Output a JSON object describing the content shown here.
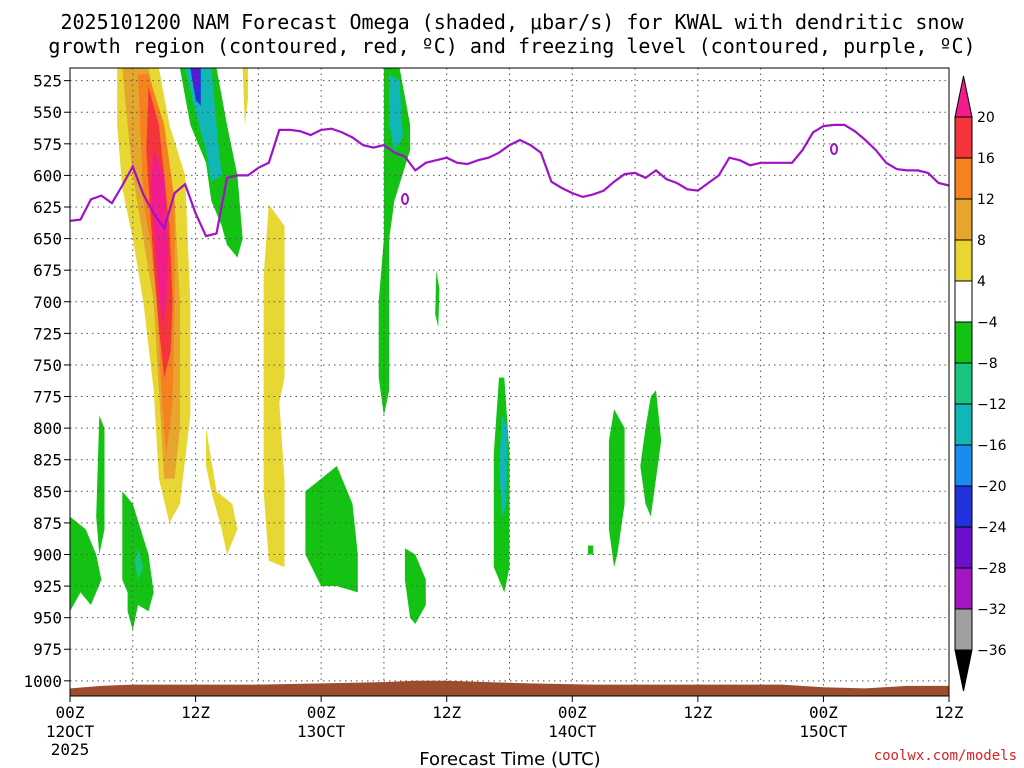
{
  "chart_data": {
    "type": "heatmap",
    "title_line1": "2025101200 NAM Forecast Omega (shaded, μbar/s) for KWAL with dendritic snow",
    "title_line2": "growth region (contoured, red, ºC) and freezing level (contoured, purple, ºC)",
    "xlabel": "Forecast Time (UTC)",
    "credit": "coolwx.com/models",
    "x_range_hours": [
      0,
      84
    ],
    "y_range_hpa": [
      515,
      1012
    ],
    "y_ticks": [
      525,
      550,
      575,
      600,
      625,
      650,
      675,
      700,
      725,
      750,
      775,
      800,
      825,
      850,
      875,
      900,
      925,
      950,
      975,
      1000
    ],
    "x_ticks": [
      {
        "h": 0,
        "l1": "00Z",
        "l2": "12OCT",
        "l3": "2025"
      },
      {
        "h": 12,
        "l1": "12Z",
        "l2": "",
        "l3": ""
      },
      {
        "h": 24,
        "l1": "00Z",
        "l2": "13OCT",
        "l3": ""
      },
      {
        "h": 36,
        "l1": "12Z",
        "l2": "",
        "l3": ""
      },
      {
        "h": 48,
        "l1": "00Z",
        "l2": "14OCT",
        "l3": ""
      },
      {
        "h": 60,
        "l1": "12Z",
        "l2": "",
        "l3": ""
      },
      {
        "h": 72,
        "l1": "00Z",
        "l2": "15OCT",
        "l3": ""
      },
      {
        "h": 84,
        "l1": "12Z",
        "l2": "",
        "l3": ""
      }
    ],
    "colorbar": {
      "labels": [
        "20",
        "16",
        "12",
        "8",
        "4",
        "−4",
        "−8",
        "−12",
        "−16",
        "−20",
        "−24",
        "−28",
        "−32",
        "−36"
      ],
      "colors_top_to_bottom": [
        "#f21c8c",
        "#f5343c",
        "#f5821e",
        "#e6a62e",
        "#e8d632",
        "#ffffff",
        "#13c213",
        "#18c682",
        "#12b6b6",
        "#1a8cf0",
        "#2233dd",
        "#6a10cc",
        "#a416c4",
        "#a0a0a0",
        "#000000"
      ]
    },
    "freezing_level_hpa": [
      [
        0,
        636
      ],
      [
        1,
        635
      ],
      [
        2,
        619
      ],
      [
        3,
        616
      ],
      [
        4,
        622
      ],
      [
        5,
        608
      ],
      [
        6,
        593
      ],
      [
        7,
        615
      ],
      [
        8,
        630
      ],
      [
        9,
        642
      ],
      [
        10,
        614
      ],
      [
        11,
        607
      ],
      [
        12,
        630
      ],
      [
        13,
        648
      ],
      [
        14,
        646
      ],
      [
        15,
        602
      ],
      [
        16,
        600
      ],
      [
        17,
        600
      ],
      [
        18,
        594
      ],
      [
        19,
        590
      ],
      [
        20,
        564
      ],
      [
        21,
        564
      ],
      [
        22,
        565
      ],
      [
        23,
        568
      ],
      [
        24,
        564
      ],
      [
        25,
        563
      ],
      [
        26,
        566
      ],
      [
        27,
        570
      ],
      [
        28,
        576
      ],
      [
        29,
        578
      ],
      [
        30,
        576
      ],
      [
        31,
        582
      ],
      [
        32,
        585
      ],
      [
        33,
        596
      ],
      [
        34,
        590
      ],
      [
        35,
        588
      ],
      [
        36,
        586
      ],
      [
        37,
        590
      ],
      [
        38,
        591
      ],
      [
        39,
        588
      ],
      [
        40,
        586
      ],
      [
        41,
        582
      ],
      [
        42,
        576
      ],
      [
        43,
        572
      ],
      [
        44,
        576
      ],
      [
        45,
        582
      ],
      [
        46,
        605
      ],
      [
        47,
        610
      ],
      [
        48,
        614
      ],
      [
        49,
        617
      ],
      [
        50,
        615
      ],
      [
        51,
        612
      ],
      [
        52,
        605
      ],
      [
        53,
        599
      ],
      [
        54,
        598
      ],
      [
        55,
        602
      ],
      [
        56,
        596
      ],
      [
        57,
        603
      ],
      [
        58,
        606
      ],
      [
        59,
        611
      ],
      [
        60,
        612
      ],
      [
        61,
        606
      ],
      [
        62,
        600
      ],
      [
        63,
        586
      ],
      [
        64,
        588
      ],
      [
        65,
        592
      ],
      [
        66,
        590
      ],
      [
        67,
        590
      ],
      [
        68,
        590
      ],
      [
        69,
        590
      ],
      [
        70,
        580
      ],
      [
        71,
        566
      ],
      [
        72,
        561
      ],
      [
        73,
        560
      ],
      [
        74,
        560
      ],
      [
        75,
        565
      ],
      [
        76,
        572
      ],
      [
        77,
        580
      ],
      [
        78,
        590
      ],
      [
        79,
        595
      ],
      [
        80,
        596
      ],
      [
        81,
        596
      ],
      [
        82,
        598
      ],
      [
        83,
        606
      ],
      [
        84,
        608
      ]
    ],
    "terrain_hpa": [
      [
        0,
        1006
      ],
      [
        3,
        1004
      ],
      [
        6,
        1003
      ],
      [
        12,
        1003
      ],
      [
        18,
        1003
      ],
      [
        24,
        1002
      ],
      [
        30,
        1001
      ],
      [
        33,
        1000
      ],
      [
        36,
        1000
      ],
      [
        40,
        1001
      ],
      [
        44,
        1002
      ],
      [
        50,
        1003
      ],
      [
        56,
        1003
      ],
      [
        62,
        1003
      ],
      [
        68,
        1003
      ],
      [
        72,
        1005
      ],
      [
        76,
        1006
      ],
      [
        80,
        1004
      ],
      [
        84,
        1004
      ]
    ],
    "omega_regions": [
      {
        "level": "6",
        "pts": [
          [
            4.5,
            515
          ],
          [
            8.5,
            515
          ],
          [
            9.5,
            560
          ],
          [
            11,
            600
          ],
          [
            11.5,
            700
          ],
          [
            11.5,
            790
          ],
          [
            10.5,
            860
          ],
          [
            9.5,
            875
          ],
          [
            8.5,
            840
          ],
          [
            8,
            770
          ],
          [
            7,
            700
          ],
          [
            6,
            650
          ],
          [
            5,
            610
          ],
          [
            4.5,
            560
          ]
        ]
      },
      {
        "level": "10",
        "pts": [
          [
            5,
            515
          ],
          [
            7.5,
            515
          ],
          [
            8.5,
            560
          ],
          [
            10,
            620
          ],
          [
            10.5,
            700
          ],
          [
            10.5,
            800
          ],
          [
            10,
            840
          ],
          [
            9,
            840
          ],
          [
            8.5,
            770
          ],
          [
            8,
            700
          ],
          [
            7,
            650
          ],
          [
            6,
            600
          ],
          [
            5.5,
            560
          ]
        ]
      },
      {
        "level": "14",
        "pts": [
          [
            6.5,
            520
          ],
          [
            7.5,
            520
          ],
          [
            9,
            560
          ],
          [
            10,
            620
          ],
          [
            10,
            700
          ],
          [
            9.8,
            780
          ],
          [
            9.2,
            820
          ],
          [
            8.8,
            780
          ],
          [
            8.3,
            700
          ],
          [
            7.8,
            660
          ],
          [
            7,
            620
          ],
          [
            6.8,
            580
          ]
        ]
      },
      {
        "level": "18",
        "pts": [
          [
            7.5,
            530
          ],
          [
            8.5,
            560
          ],
          [
            9.5,
            640
          ],
          [
            9.8,
            700
          ],
          [
            9.6,
            740
          ],
          [
            9,
            760
          ],
          [
            8.5,
            720
          ],
          [
            8,
            670
          ],
          [
            7.6,
            620
          ],
          [
            7.3,
            580
          ]
        ]
      },
      {
        "level": "22",
        "pts": [
          [
            8,
            580
          ],
          [
            9,
            600
          ],
          [
            9.4,
            660
          ],
          [
            9.2,
            700
          ],
          [
            8.8,
            720
          ],
          [
            8.4,
            680
          ],
          [
            8,
            640
          ],
          [
            7.7,
            610
          ]
        ]
      },
      {
        "level": "6",
        "pts": [
          [
            13,
            800
          ],
          [
            14,
            850
          ],
          [
            15.5,
            860
          ],
          [
            16,
            880
          ],
          [
            15,
            900
          ],
          [
            14.5,
            880
          ],
          [
            13.5,
            850
          ],
          [
            13,
            830
          ]
        ]
      },
      {
        "level": "6",
        "pts": [
          [
            19,
            623
          ],
          [
            20.5,
            640
          ],
          [
            20.5,
            760
          ],
          [
            20,
            780
          ],
          [
            20.5,
            840
          ],
          [
            20.5,
            910
          ],
          [
            19,
            905
          ],
          [
            18.5,
            850
          ],
          [
            18.5,
            780
          ],
          [
            18.5,
            680
          ]
        ]
      },
      {
        "level": "6",
        "pts": [
          [
            16.5,
            515
          ],
          [
            17,
            515
          ],
          [
            17,
            540
          ],
          [
            16.7,
            560
          ]
        ]
      },
      {
        "level": "-6",
        "pts": [
          [
            10.5,
            515
          ],
          [
            14,
            515
          ],
          [
            15,
            560
          ],
          [
            16,
            600
          ],
          [
            16.5,
            650
          ],
          [
            16,
            665
          ],
          [
            15,
            655
          ],
          [
            14.5,
            640
          ],
          [
            13.5,
            620
          ],
          [
            13,
            590
          ],
          [
            11.5,
            560
          ]
        ]
      },
      {
        "level": "-14",
        "pts": [
          [
            11,
            515
          ],
          [
            13.5,
            515
          ],
          [
            14,
            560
          ],
          [
            14.5,
            600
          ],
          [
            13.5,
            605
          ],
          [
            13,
            580
          ],
          [
            12,
            550
          ]
        ]
      },
      {
        "level": "-22",
        "pts": [
          [
            11.5,
            515
          ],
          [
            12.5,
            515
          ],
          [
            12.5,
            545
          ],
          [
            12,
            540
          ]
        ]
      },
      {
        "level": "-26",
        "pts": [
          [
            11.8,
            515
          ],
          [
            12.3,
            515
          ],
          [
            12.2,
            535
          ],
          [
            11.9,
            530
          ]
        ]
      },
      {
        "level": "-6",
        "pts": [
          [
            30,
            515
          ],
          [
            31.5,
            515
          ],
          [
            32.5,
            560
          ],
          [
            32.5,
            580
          ],
          [
            31,
            620
          ],
          [
            30.5,
            650
          ],
          [
            30.5,
            700
          ],
          [
            30.5,
            770
          ],
          [
            30,
            790
          ],
          [
            29.5,
            760
          ],
          [
            29.5,
            700
          ],
          [
            30,
            650
          ],
          [
            30,
            560
          ]
        ]
      },
      {
        "level": "-14",
        "pts": [
          [
            30.5,
            520
          ],
          [
            31.5,
            525
          ],
          [
            31.8,
            570
          ],
          [
            31,
            580
          ],
          [
            30.5,
            560
          ]
        ]
      },
      {
        "level": "-6",
        "pts": [
          [
            35,
            675
          ],
          [
            35.3,
            690
          ],
          [
            35.2,
            720
          ],
          [
            34.9,
            710
          ]
        ]
      },
      {
        "level": "-6",
        "pts": [
          [
            0,
            870
          ],
          [
            1.5,
            880
          ],
          [
            2.5,
            900
          ],
          [
            3,
            920
          ],
          [
            2,
            940
          ],
          [
            1,
            930
          ],
          [
            0,
            945
          ]
        ]
      },
      {
        "level": "-6",
        "pts": [
          [
            2.8,
            790
          ],
          [
            3.3,
            800
          ],
          [
            3.3,
            880
          ],
          [
            2.8,
            900
          ],
          [
            2.5,
            870
          ]
        ]
      },
      {
        "level": "-6",
        "pts": [
          [
            5,
            850
          ],
          [
            6,
            860
          ],
          [
            7.5,
            900
          ],
          [
            8,
            930
          ],
          [
            7.5,
            945
          ],
          [
            6.5,
            940
          ],
          [
            6,
            960
          ],
          [
            5.5,
            945
          ],
          [
            5.5,
            930
          ],
          [
            5,
            920
          ]
        ]
      },
      {
        "level": "-12",
        "pts": [
          [
            6.5,
            895
          ],
          [
            7,
            910
          ],
          [
            6.5,
            920
          ],
          [
            6.2,
            905
          ]
        ]
      },
      {
        "level": "-6",
        "pts": [
          [
            22.5,
            850
          ],
          [
            24,
            840
          ],
          [
            25.5,
            830
          ],
          [
            27,
            860
          ],
          [
            27.5,
            900
          ],
          [
            27.5,
            930
          ],
          [
            25.5,
            925
          ],
          [
            24,
            925
          ],
          [
            22.5,
            900
          ]
        ]
      },
      {
        "level": "-6",
        "pts": [
          [
            32,
            895
          ],
          [
            33,
            900
          ],
          [
            34,
            920
          ],
          [
            34,
            940
          ],
          [
            33,
            955
          ],
          [
            32.5,
            950
          ],
          [
            32,
            920
          ]
        ]
      },
      {
        "level": "-6",
        "pts": [
          [
            41,
            760
          ],
          [
            41.5,
            760
          ],
          [
            42,
            820
          ],
          [
            42,
            870
          ],
          [
            42,
            910
          ],
          [
            41.5,
            930
          ],
          [
            40.5,
            910
          ],
          [
            40.5,
            870
          ],
          [
            40.5,
            820
          ]
        ]
      },
      {
        "level": "-14",
        "pts": [
          [
            41.3,
            790
          ],
          [
            41.8,
            800
          ],
          [
            41.7,
            860
          ],
          [
            41.3,
            870
          ],
          [
            41,
            830
          ]
        ]
      },
      {
        "level": "-6",
        "pts": [
          [
            52,
            785
          ],
          [
            53,
            800
          ],
          [
            53,
            860
          ],
          [
            52.3,
            900
          ],
          [
            52,
            910
          ],
          [
            51.5,
            880
          ],
          [
            51.5,
            840
          ],
          [
            51.5,
            810
          ]
        ]
      },
      {
        "level": "-6",
        "pts": [
          [
            49.5,
            893
          ],
          [
            50,
            893
          ],
          [
            50,
            900
          ],
          [
            49.5,
            900
          ]
        ]
      },
      {
        "level": "-6",
        "pts": [
          [
            55.5,
            775
          ],
          [
            56,
            770
          ],
          [
            56.5,
            810
          ],
          [
            56,
            840
          ],
          [
            55.5,
            870
          ],
          [
            55,
            860
          ],
          [
            54.5,
            830
          ],
          [
            55,
            800
          ]
        ]
      }
    ]
  }
}
